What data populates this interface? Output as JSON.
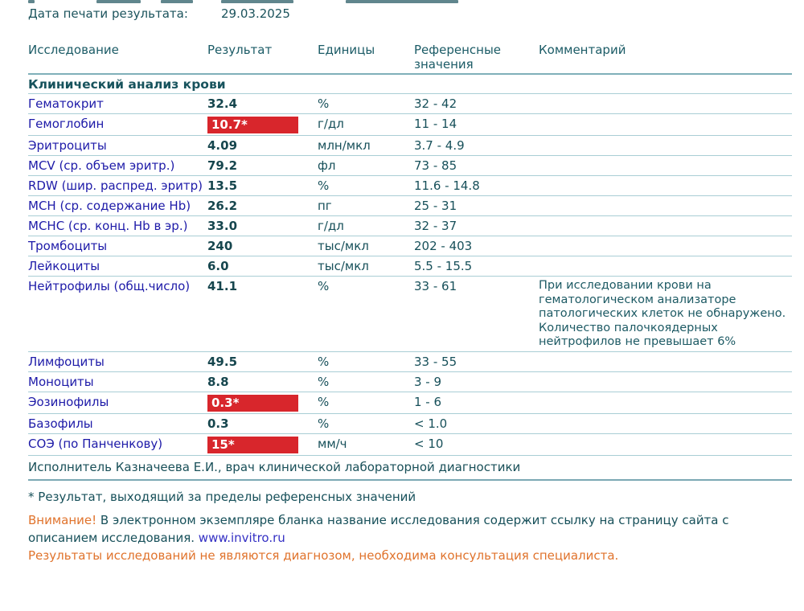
{
  "colors": {
    "text_teal": "#17505a",
    "link_navy": "#1d1aa8",
    "flag_red": "#d8262c",
    "warning_orange": "#e0732c",
    "row_line": "#a9ced5",
    "section_line": "#7fb0b9"
  },
  "header": {
    "print_date_label": "Дата печати результата:",
    "print_date_value": "29.03.2025"
  },
  "table": {
    "columns": {
      "test": "Исследование",
      "result": "Результат",
      "units": "Единицы",
      "reference": "Референсные значения",
      "comment": "Комментарий"
    },
    "section_title": "Клинический анализ крови",
    "rows": [
      {
        "name": "Гематокрит",
        "result": "32.4",
        "flag": false,
        "units": "%",
        "reference": "32 - 42",
        "comment": ""
      },
      {
        "name": "Гемоглобин",
        "result": "10.7*",
        "flag": true,
        "units": "г/дл",
        "reference": "11 - 14",
        "comment": ""
      },
      {
        "name": "Эритроциты",
        "result": "4.09",
        "flag": false,
        "units": "млн/мкл",
        "reference": "3.7 - 4.9",
        "comment": ""
      },
      {
        "name": "MCV (ср. объем эритр.)",
        "result": "79.2",
        "flag": false,
        "units": "фл",
        "reference": "73 - 85",
        "comment": ""
      },
      {
        "name": "RDW (шир. распред. эритр)",
        "result": "13.5",
        "flag": false,
        "units": "%",
        "reference": "11.6 - 14.8",
        "comment": ""
      },
      {
        "name": "MCH (ср. содержание Hb)",
        "result": "26.2",
        "flag": false,
        "units": "пг",
        "reference": "25 - 31",
        "comment": ""
      },
      {
        "name": "MCHC (ср. конц. Hb в эр.)",
        "result": "33.0",
        "flag": false,
        "units": "г/дл",
        "reference": "32 - 37",
        "comment": ""
      },
      {
        "name": "Тромбоциты",
        "result": "240",
        "flag": false,
        "units": "тыс/мкл",
        "reference": "202 - 403",
        "comment": ""
      },
      {
        "name": "Лейкоциты",
        "result": "6.0",
        "flag": false,
        "units": "тыс/мкл",
        "reference": "5.5 - 15.5",
        "comment": ""
      },
      {
        "name": "Нейтрофилы (общ.число)",
        "result": "41.1",
        "flag": false,
        "units": "%",
        "reference": "33 - 61",
        "comment": "При исследовании крови на гематологическом анализаторе патологических клеток не обнаружено. Количество палочкоядерных нейтрофилов не превышает 6%",
        "tall": true
      },
      {
        "name": "Лимфоциты",
        "result": "49.5",
        "flag": false,
        "units": "%",
        "reference": "33 - 55",
        "comment": ""
      },
      {
        "name": "Моноциты",
        "result": "8.8",
        "flag": false,
        "units": "%",
        "reference": "3 - 9",
        "comment": ""
      },
      {
        "name": "Эозинофилы",
        "result": "0.3*",
        "flag": true,
        "units": "%",
        "reference": "1 - 6",
        "comment": ""
      },
      {
        "name": "Базофилы",
        "result": "0.3",
        "flag": false,
        "units": "%",
        "reference": "< 1.0",
        "comment": ""
      },
      {
        "name": "СОЭ (по Панченкову)",
        "result": "15*",
        "flag": true,
        "units": "мм/ч",
        "reference": "< 10",
        "comment": ""
      }
    ],
    "executor_line": "Исполнитель Казначеева  Е.И., врач клинической лабораторной диагностики"
  },
  "footnotes": {
    "asterisk_note": "* Результат, выходящий за пределы референсных значений",
    "attention_label": "Внимание!",
    "attention_text": " В электронном экземпляре бланка название исследования содержит ссылку на страницу сайта с описанием исследования. ",
    "site_link": "www.invitro.ru",
    "disclaimer": "Результаты исследований не являются диагнозом, необходима консультация специалиста."
  }
}
